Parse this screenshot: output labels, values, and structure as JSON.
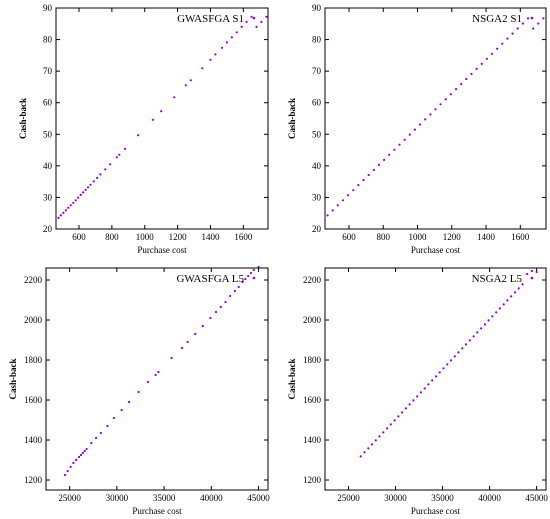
{
  "colors": {
    "series": "#9400d3",
    "axis": "#000000"
  },
  "chart_data": [
    {
      "type": "scatter",
      "legend": "GWASFGA S1",
      "legend_placement": "top-right",
      "xlabel": "Purchase cost",
      "ylabel": "Cash-back",
      "xlim": [
        460,
        1750
      ],
      "ylim": [
        20,
        90
      ],
      "xticks": [
        "600",
        "800",
        "1000",
        "1200",
        "1400",
        "1600"
      ],
      "yticks": [
        "20",
        "30",
        "40",
        "50",
        "60",
        "70",
        "80",
        "90"
      ],
      "grid": false,
      "series": [
        {
          "x": [
            475,
            490,
            505,
            520,
            535,
            550,
            565,
            580,
            595,
            610,
            625,
            640,
            655,
            670,
            690,
            710,
            730,
            760,
            790,
            830,
            845,
            880,
            960,
            1050,
            1100,
            1180,
            1250,
            1280,
            1350,
            1400,
            1430,
            1470,
            1500,
            1530,
            1560,
            1590,
            1620,
            1650,
            1680,
            1710,
            1740
          ],
          "y": [
            23.5,
            24.3,
            25.1,
            25.9,
            26.7,
            27.5,
            28.3,
            29.1,
            29.9,
            30.8,
            31.6,
            32.4,
            33.2,
            34.0,
            35.1,
            36.2,
            37.3,
            38.9,
            40.5,
            42.7,
            43.5,
            45.4,
            49.7,
            54.6,
            57.3,
            61.7,
            65.5,
            67.1,
            70.9,
            73.6,
            75.3,
            77.4,
            79.1,
            80.7,
            82.3,
            84.0,
            85.6,
            87.2,
            84.0,
            85.6,
            87.2
          ]
        }
      ]
    },
    {
      "type": "scatter",
      "legend": "NSGA2 S1",
      "legend_placement": "top-right",
      "xlabel": "Purchase cost",
      "ylabel": "Cash-back",
      "xlim": [
        460,
        1750
      ],
      "ylim": [
        20,
        90
      ],
      "xticks": [
        "600",
        "800",
        "1000",
        "1200",
        "1400",
        "1600"
      ],
      "yticks": [
        "20",
        "30",
        "40",
        "50",
        "60",
        "70",
        "80",
        "90"
      ],
      "grid": false,
      "series": [
        {
          "x": [
            475,
            505,
            535,
            565,
            595,
            625,
            655,
            685,
            715,
            745,
            775,
            805,
            835,
            865,
            895,
            925,
            955,
            985,
            1015,
            1045,
            1075,
            1105,
            1135,
            1165,
            1195,
            1225,
            1255,
            1285,
            1315,
            1345,
            1375,
            1405,
            1435,
            1465,
            1495,
            1525,
            1555,
            1585,
            1615,
            1645,
            1675,
            1705,
            1735
          ],
          "y": [
            24.3,
            25.9,
            27.5,
            29.1,
            30.7,
            32.3,
            33.9,
            35.5,
            37.1,
            38.7,
            40.3,
            41.9,
            43.5,
            45.1,
            46.7,
            48.3,
            49.9,
            51.5,
            53.1,
            54.7,
            56.3,
            57.9,
            59.5,
            61.1,
            62.7,
            64.3,
            65.9,
            67.5,
            69.1,
            70.7,
            72.3,
            73.9,
            75.5,
            77.1,
            78.7,
            80.3,
            81.9,
            83.5,
            85.1,
            86.7,
            83.5,
            85.1,
            86.7
          ]
        }
      ]
    },
    {
      "type": "scatter",
      "legend": "GWASFGA L5",
      "legend_placement": "top-right",
      "xlabel": "Purchase cost",
      "ylabel": "Cash-back",
      "xlim": [
        22500,
        46000
      ],
      "ylim": [
        1150,
        2260
      ],
      "xticks": [
        "25000",
        "30000",
        "35000",
        "40000",
        "45000"
      ],
      "yticks": [
        "1200",
        "1400",
        "1600",
        "1800",
        "2000",
        "2200"
      ],
      "grid": false,
      "series": [
        {
          "x": [
            24500,
            24800,
            25100,
            25400,
            25700,
            26000,
            26200,
            26400,
            26600,
            26800,
            27300,
            27800,
            28300,
            29000,
            29700,
            30500,
            31300,
            32300,
            33300,
            34100,
            34400,
            35800,
            36900,
            37500,
            38300,
            39100,
            39900,
            40500,
            41000,
            41500,
            42000,
            42500,
            42900,
            43300,
            43600,
            43900,
            44200,
            44500,
            45000
          ],
          "y": [
            1225,
            1245,
            1265,
            1285,
            1300,
            1315,
            1325,
            1335,
            1345,
            1355,
            1385,
            1410,
            1435,
            1470,
            1510,
            1550,
            1590,
            1640,
            1690,
            1725,
            1740,
            1810,
            1860,
            1890,
            1930,
            1970,
            2010,
            2040,
            2065,
            2090,
            2120,
            2145,
            2165,
            2190,
            2205,
            2220,
            2235,
            2250,
            2265
          ]
        }
      ]
    },
    {
      "type": "scatter",
      "legend": "NSGA2 L5",
      "legend_placement": "top-right",
      "xlabel": "Purchase cost",
      "ylabel": "Cash-back",
      "xlim": [
        22500,
        46000
      ],
      "ylim": [
        1150,
        2260
      ],
      "xticks": [
        "25000",
        "30000",
        "35000",
        "40000",
        "45000"
      ],
      "yticks": [
        "1200",
        "1400",
        "1600",
        "1800",
        "2000",
        "2200"
      ],
      "grid": false,
      "series": [
        {
          "x": [
            26300,
            26700,
            27100,
            27500,
            27900,
            28300,
            28700,
            29100,
            29500,
            29900,
            30300,
            30700,
            31100,
            31500,
            31900,
            32300,
            32700,
            33100,
            33500,
            33900,
            34300,
            34700,
            35100,
            35500,
            35900,
            36300,
            36700,
            37100,
            37500,
            37900,
            38300,
            38700,
            39100,
            39500,
            39900,
            40300,
            40700,
            41100,
            41500,
            41900,
            42300,
            42700,
            43100,
            43500,
            44000,
            44500,
            45000
          ],
          "y": [
            1318,
            1338,
            1358,
            1378,
            1398,
            1418,
            1438,
            1458,
            1478,
            1498,
            1518,
            1538,
            1558,
            1578,
            1598,
            1618,
            1638,
            1658,
            1678,
            1698,
            1718,
            1738,
            1758,
            1778,
            1798,
            1818,
            1838,
            1858,
            1878,
            1898,
            1918,
            1938,
            1958,
            1978,
            1998,
            2018,
            2038,
            2058,
            2078,
            2098,
            2118,
            2138,
            2158,
            2178,
            2230,
            2245,
            2240
          ]
        }
      ]
    }
  ]
}
